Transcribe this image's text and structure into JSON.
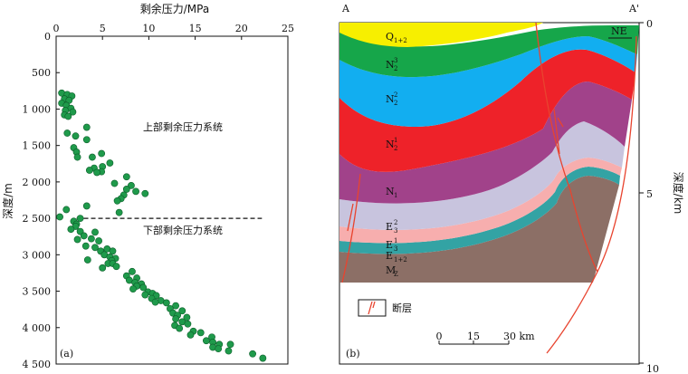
{
  "chart_data": [
    {
      "type": "scatter",
      "panel_label": "(a)",
      "xlabel": "剩余压力/MPa",
      "ylabel": "深度/m",
      "xlim": [
        0,
        25
      ],
      "ylim": [
        0,
        4500
      ],
      "y_inverted": true,
      "x_axis_position": "top",
      "xticks": [
        "0",
        "5",
        "10",
        "15",
        "20",
        "25"
      ],
      "yticks": [
        "0",
        "500",
        "1 000",
        "1 500",
        "2 000",
        "2 500",
        "3 000",
        "3 500",
        "4 000",
        "4 500"
      ],
      "point_color": "#1f9a4b",
      "grid": false,
      "annotations": [
        "上部剩余压力系统",
        "下部剩余压力系统"
      ],
      "divider_depth": 2500,
      "points": [
        [
          0.6,
          780
        ],
        [
          1.2,
          800
        ],
        [
          1.7,
          820
        ],
        [
          0.9,
          860
        ],
        [
          1.4,
          880
        ],
        [
          0.6,
          920
        ],
        [
          1.1,
          950
        ],
        [
          1.6,
          990
        ],
        [
          1.0,
          1020
        ],
        [
          1.8,
          1040
        ],
        [
          0.9,
          1080
        ],
        [
          1.3,
          1100
        ],
        [
          3.3,
          1250
        ],
        [
          1.2,
          1330
        ],
        [
          2.1,
          1370
        ],
        [
          3.3,
          1420
        ],
        [
          1.9,
          1530
        ],
        [
          2.2,
          1590
        ],
        [
          4.9,
          1610
        ],
        [
          2.3,
          1660
        ],
        [
          3.9,
          1660
        ],
        [
          5.8,
          1740
        ],
        [
          5.0,
          1790
        ],
        [
          4.1,
          1810
        ],
        [
          3.6,
          1840
        ],
        [
          4.9,
          1860
        ],
        [
          4.4,
          1870
        ],
        [
          7.6,
          1930
        ],
        [
          6.3,
          2020
        ],
        [
          8.1,
          2050
        ],
        [
          7.6,
          2100
        ],
        [
          8.6,
          2130
        ],
        [
          9.6,
          2160
        ],
        [
          7.3,
          2180
        ],
        [
          7.0,
          2230
        ],
        [
          6.6,
          2260
        ],
        [
          3.3,
          2330
        ],
        [
          1.1,
          2380
        ],
        [
          6.8,
          2420
        ],
        [
          0.4,
          2480
        ],
        [
          2.6,
          2500
        ],
        [
          1.9,
          2540
        ],
        [
          2.2,
          2580
        ],
        [
          2.1,
          2610
        ],
        [
          1.6,
          2650
        ],
        [
          2.6,
          2680
        ],
        [
          4.2,
          2690
        ],
        [
          3.0,
          2740
        ],
        [
          2.3,
          2790
        ],
        [
          3.8,
          2780
        ],
        [
          4.6,
          2810
        ],
        [
          3.2,
          2880
        ],
        [
          4.2,
          2900
        ],
        [
          5.5,
          2920
        ],
        [
          4.8,
          2950
        ],
        [
          6.1,
          2950
        ],
        [
          5.2,
          3000
        ],
        [
          5.8,
          3030
        ],
        [
          6.4,
          3050
        ],
        [
          6.0,
          3080
        ],
        [
          5.6,
          3120
        ],
        [
          6.1,
          3120
        ],
        [
          6.5,
          3160
        ],
        [
          3.4,
          3070
        ],
        [
          5.0,
          3180
        ],
        [
          8.2,
          3230
        ],
        [
          7.6,
          3290
        ],
        [
          8.7,
          3320
        ],
        [
          7.9,
          3350
        ],
        [
          8.5,
          3380
        ],
        [
          9.2,
          3400
        ],
        [
          8.7,
          3430
        ],
        [
          9.4,
          3450
        ],
        [
          8.3,
          3470
        ],
        [
          9.9,
          3510
        ],
        [
          10.4,
          3530
        ],
        [
          9.6,
          3550
        ],
        [
          10.8,
          3560
        ],
        [
          10.3,
          3600
        ],
        [
          11.3,
          3630
        ],
        [
          10.7,
          3650
        ],
        [
          11.9,
          3660
        ],
        [
          12.9,
          3700
        ],
        [
          12.3,
          3740
        ],
        [
          13.6,
          3770
        ],
        [
          12.6,
          3800
        ],
        [
          13.1,
          3830
        ],
        [
          14.1,
          3860
        ],
        [
          12.9,
          3880
        ],
        [
          13.6,
          3920
        ],
        [
          14.2,
          3950
        ],
        [
          12.8,
          3970
        ],
        [
          13.3,
          4010
        ],
        [
          14.8,
          4050
        ],
        [
          15.6,
          4070
        ],
        [
          14.5,
          4100
        ],
        [
          16.8,
          4130
        ],
        [
          16.2,
          4180
        ],
        [
          16.9,
          4200
        ],
        [
          17.6,
          4230
        ],
        [
          16.9,
          4270
        ],
        [
          18.8,
          4230
        ],
        [
          17.5,
          4290
        ],
        [
          18.6,
          4320
        ],
        [
          21.2,
          4360
        ],
        [
          22.3,
          4420
        ]
      ]
    },
    {
      "type": "cross-section",
      "panel_label": "(b)",
      "section_start": "A",
      "section_end": "A'",
      "orientation": "NE",
      "right_axis_label": "深度/km",
      "right_ticks": [
        "0",
        "5",
        "10"
      ],
      "layers": [
        {
          "name": "Q1+2",
          "base": "Q",
          "sub": "1+2",
          "sup": "",
          "color": "#f7ef00"
        },
        {
          "name": "N2^3",
          "base": "N",
          "sub": "2",
          "sup": "3",
          "color": "#16a64a"
        },
        {
          "name": "N2^2",
          "base": "N",
          "sub": "2",
          "sup": "2",
          "color": "#12aef0"
        },
        {
          "name": "N2^1",
          "base": "N",
          "sub": "2",
          "sup": "1",
          "color": "#ee2229"
        },
        {
          "name": "N1",
          "base": "N",
          "sub": "1",
          "sup": "",
          "color": "#a1428a"
        },
        {
          "name": "E3^2",
          "base": "E",
          "sub": "3",
          "sup": "2",
          "color": "#c8c4de"
        },
        {
          "name": "E3^1",
          "base": "E",
          "sub": "3",
          "sup": "1",
          "color": "#f7aeae"
        },
        {
          "name": "E1+2",
          "base": "E",
          "sub": "1+2",
          "sup": "",
          "color": "#33a3a4"
        },
        {
          "name": "Mz",
          "base": "M",
          "sub": "Z",
          "sup": "",
          "color": "#8c6f66"
        }
      ],
      "legend": {
        "label": "断层",
        "color": "#e8442f"
      },
      "scale_bar": {
        "ticks": [
          "0",
          "15",
          "30 km"
        ]
      }
    }
  ]
}
